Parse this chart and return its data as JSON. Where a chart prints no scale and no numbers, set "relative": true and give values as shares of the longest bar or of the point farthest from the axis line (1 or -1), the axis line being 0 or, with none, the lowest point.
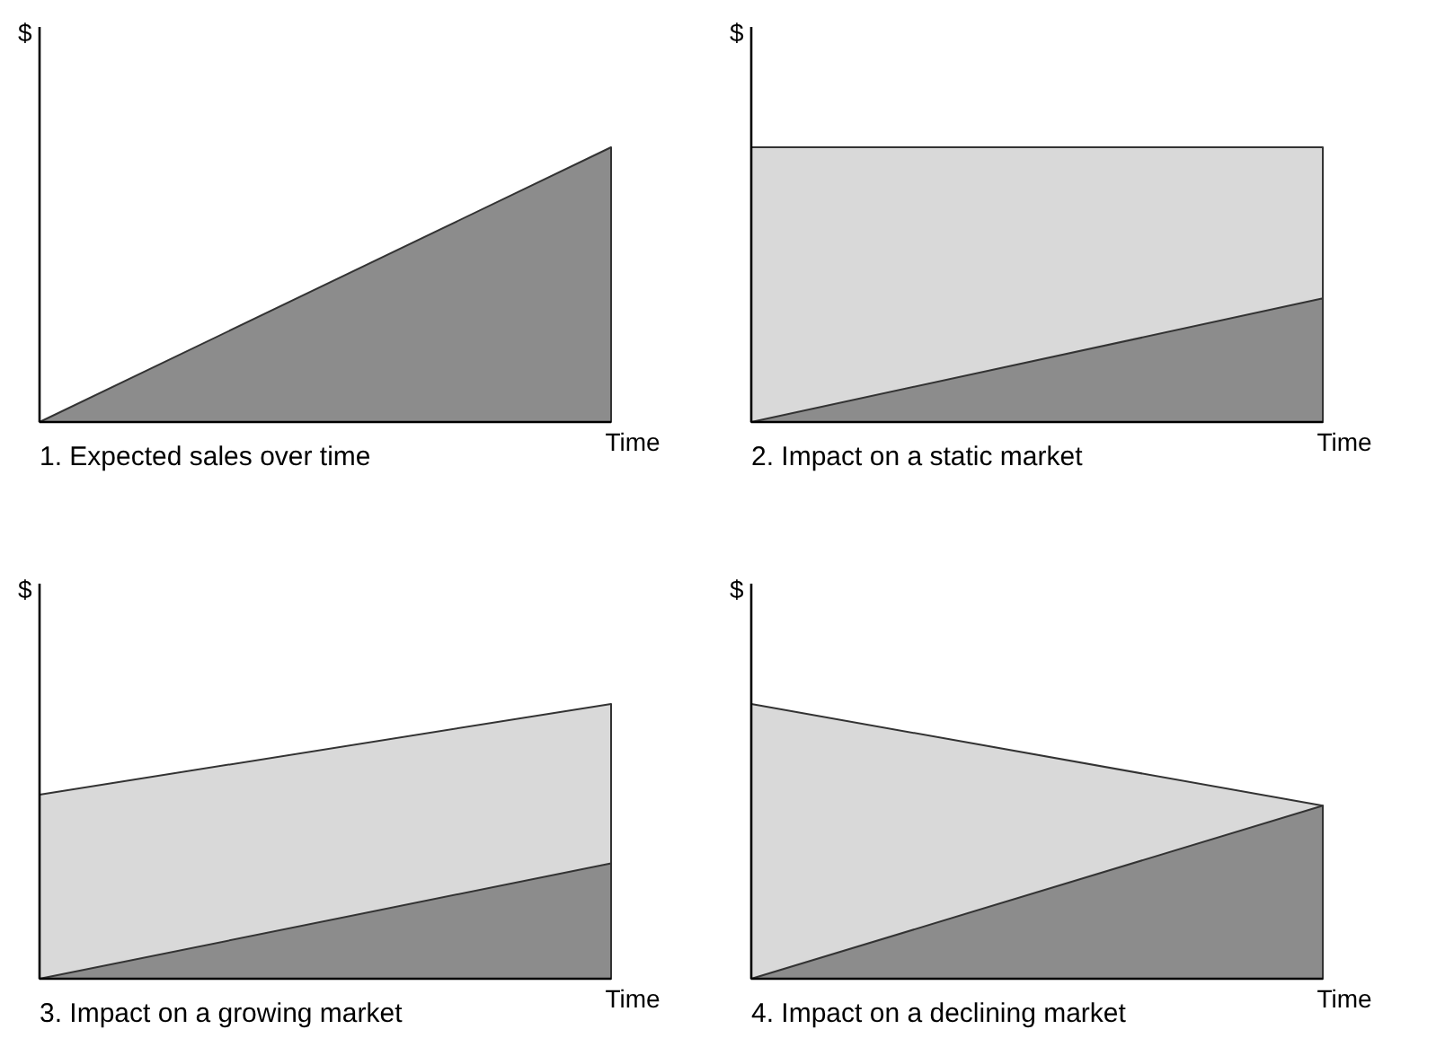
{
  "chart_data": [
    {
      "type": "area",
      "title": "1. Expected sales over time",
      "xlabel": "Time",
      "ylabel": "$",
      "relative": true,
      "categories": [
        null,
        null
      ],
      "series": [
        {
          "color": "#8c8c8c",
          "values": [
            0,
            1
          ]
        }
      ]
    },
    {
      "type": "area",
      "title": "2. Impact on a static market",
      "xlabel": "Time",
      "ylabel": "$",
      "relative": true,
      "categories": [
        null,
        null
      ],
      "series": [
        {
          "color": "#d9d9d9",
          "values": [
            1,
            1
          ]
        },
        {
          "color": "#8c8c8c",
          "values": [
            0,
            0.45
          ]
        }
      ]
    },
    {
      "type": "area",
      "title": "3. Impact on a growing market",
      "xlabel": "Time",
      "ylabel": "$",
      "relative": true,
      "categories": [
        null,
        null
      ],
      "series": [
        {
          "color": "#d9d9d9",
          "values": [
            0.67,
            1
          ]
        },
        {
          "color": "#8c8c8c",
          "values": [
            0,
            0.42
          ]
        }
      ]
    },
    {
      "type": "area",
      "title": "4. Impact on a declining market",
      "xlabel": "Time",
      "ylabel": "$",
      "relative": true,
      "categories": [
        null,
        null
      ],
      "series": [
        {
          "color": "#d9d9d9",
          "values": [
            1,
            0.63
          ]
        },
        {
          "color": "#8c8c8c",
          "values": [
            0,
            0.63
          ]
        }
      ]
    }
  ]
}
